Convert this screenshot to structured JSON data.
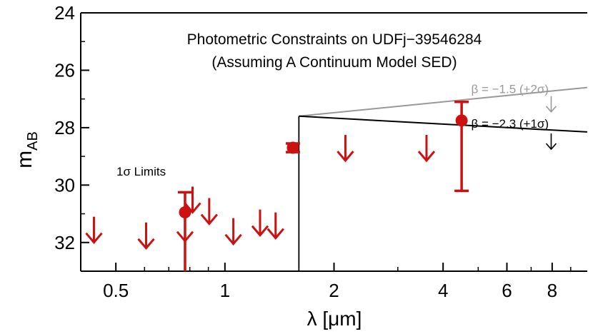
{
  "chart_data": {
    "type": "scatter",
    "title_line1": "Photometric Constraints on UDFj−39546284",
    "title_line2": "(Assuming A Continuum Model SED)",
    "xlabel": "λ [μm]",
    "ylabel_main": "m",
    "ylabel_sub": "AB",
    "xscale": "log",
    "xlim": [
      0.4,
      10.0
    ],
    "ylim": [
      33.0,
      24.0
    ],
    "y_inverted": true,
    "xticks": [
      0.5,
      1,
      2,
      4,
      6,
      8
    ],
    "xtick_labels": [
      "0.5",
      "1",
      "2",
      "4",
      "6",
      "8"
    ],
    "yticks": [
      24,
      26,
      28,
      30,
      32
    ],
    "ytick_labels": [
      "24",
      "26",
      "28",
      "30",
      "32"
    ],
    "upper_limits_label": "1σ Limits",
    "colors": {
      "data": "#cc1111",
      "axis": "#000000",
      "model_hi": "#999999",
      "model_lo": "#000000"
    },
    "upper_limits": [
      {
        "x": 0.435,
        "y": 31.55
      },
      {
        "x": 0.606,
        "y": 31.75
      },
      {
        "x": 0.776,
        "y": 31.5
      },
      {
        "x": 0.814,
        "y": 30.5
      },
      {
        "x": 0.905,
        "y": 30.9
      },
      {
        "x": 1.055,
        "y": 31.6
      },
      {
        "x": 1.25,
        "y": 31.3
      },
      {
        "x": 1.38,
        "y": 31.4
      },
      {
        "x": 2.15,
        "y": 28.7
      },
      {
        "x": 3.6,
        "y": 28.7
      }
    ],
    "detections": [
      {
        "x": 0.776,
        "y": 30.95,
        "yerr_upper": 33.5,
        "yerr_lower": 30.25,
        "cap": "top"
      },
      {
        "x": 1.54,
        "y": 28.7,
        "yerr_upper": 28.85,
        "yerr_lower": 28.55,
        "cap": "both"
      },
      {
        "x": 4.5,
        "y": 27.75,
        "yerr_upper": 30.2,
        "yerr_lower": 27.1,
        "cap": "both"
      }
    ],
    "models": [
      {
        "label": "β = −1.5 (+2σ)",
        "color": "#999999",
        "points": [
          [
            1.6,
            27.6
          ],
          [
            10.0,
            26.6
          ]
        ],
        "arrow_x": 7.95,
        "arrow_y_top": 26.9,
        "arrow_y_bottom": 27.45
      },
      {
        "label": "β = −2.3 (+1σ)",
        "color": "#000000",
        "points": [
          [
            1.6,
            27.6
          ],
          [
            10.0,
            28.15
          ]
        ],
        "arrow_x": 7.95,
        "arrow_y_top": 28.2,
        "arrow_y_bottom": 28.75
      }
    ],
    "break": {
      "x": 1.6,
      "y_top": 27.6
    }
  }
}
